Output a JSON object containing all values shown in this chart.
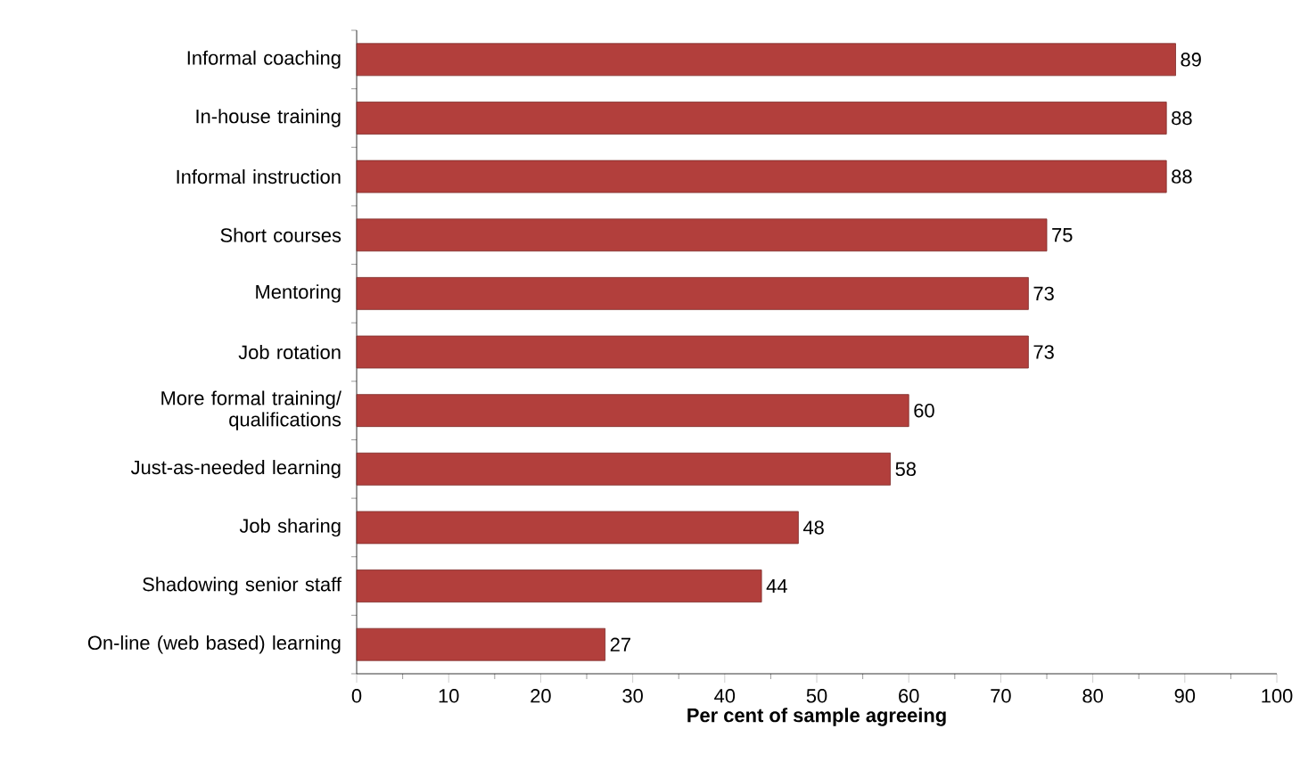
{
  "chart_data": {
    "type": "bar",
    "orientation": "horizontal",
    "categories": [
      "Informal coaching",
      "In-house training",
      "Informal instruction",
      "Short courses",
      "Mentoring",
      "Job rotation",
      "More formal training/ qualifications",
      "Just-as-needed learning",
      "Job sharing",
      "Shadowing senior staff",
      "On-line (web based) learning"
    ],
    "values": [
      89,
      88,
      88,
      75,
      73,
      73,
      60,
      58,
      48,
      44,
      27
    ],
    "color": "#b23f3c",
    "xlim": [
      0,
      100
    ],
    "xticks": [
      0,
      10,
      20,
      30,
      40,
      50,
      60,
      70,
      80,
      90,
      100
    ],
    "xlabel": "Per cent of sample agreeing",
    "data_labels": true,
    "grid": false
  }
}
